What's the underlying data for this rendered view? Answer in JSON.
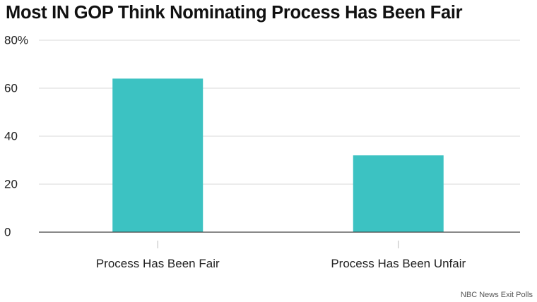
{
  "colors": {
    "bar": "#3cc2c2",
    "grid": "#d9d9d9",
    "baseline": "#444444",
    "text": "#222222"
  },
  "chart_data": {
    "type": "bar",
    "title": "Most IN GOP Think Nominating Process Has Been Fair",
    "categories": [
      "Process Has Been Fair",
      "Process Has Been Unfair"
    ],
    "values": [
      64,
      32
    ],
    "ylim": [
      0,
      80
    ],
    "yticks": [
      0,
      20,
      40,
      60,
      80
    ],
    "ytick_labels": [
      "0",
      "20",
      "40",
      "60",
      "80%"
    ],
    "xlabel": "",
    "ylabel": "",
    "grid": true,
    "source": "NBC News Exit Polls"
  }
}
